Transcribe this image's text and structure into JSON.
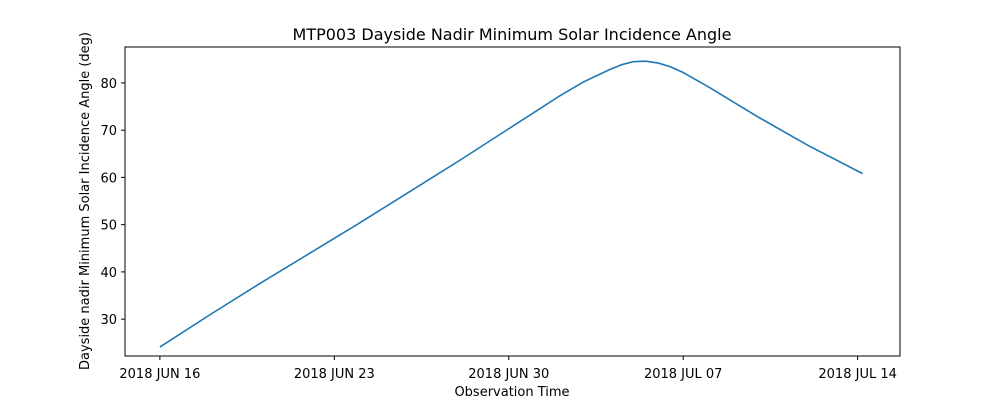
{
  "chart_data": {
    "type": "line",
    "title": "MTP003 Dayside Nadir Minimum Solar Incidence Angle",
    "xlabel": "Observation Time",
    "ylabel": "Dayside nadir Minimum Solar Incidence Angle (deg)",
    "x_unit": "days since 2018 JUN 16",
    "xlim": [
      -1.4,
      29.7
    ],
    "ylim": [
      22.2,
      87.6
    ],
    "x_ticks": [
      {
        "value": 0,
        "label": "2018 JUN 16"
      },
      {
        "value": 7,
        "label": "2018 JUN 23"
      },
      {
        "value": 14,
        "label": "2018 JUN 30"
      },
      {
        "value": 21,
        "label": "2018 JUL 07"
      },
      {
        "value": 28,
        "label": "2018 JUL 14"
      }
    ],
    "y_ticks": [
      {
        "value": 30,
        "label": "30"
      },
      {
        "value": 40,
        "label": "40"
      },
      {
        "value": 50,
        "label": "50"
      },
      {
        "value": 60,
        "label": "60"
      },
      {
        "value": 70,
        "label": "70"
      },
      {
        "value": 80,
        "label": "80"
      }
    ],
    "series": [
      {
        "name": "Dayside nadir minimum solar incidence angle",
        "color": "#1f77b4",
        "x": [
          0,
          2,
          4,
          6,
          8,
          10,
          12,
          14,
          15,
          16,
          17,
          18,
          18.5,
          19,
          19.5,
          20,
          20.5,
          21,
          22,
          24,
          26,
          28.2
        ],
        "y": [
          24.1,
          30.9,
          37.5,
          43.9,
          50.3,
          56.9,
          63.5,
          70.3,
          73.7,
          77.1,
          80.2,
          82.7,
          83.8,
          84.5,
          84.6,
          84.2,
          83.4,
          82.2,
          79.2,
          72.8,
          66.8,
          60.8
        ]
      }
    ]
  }
}
